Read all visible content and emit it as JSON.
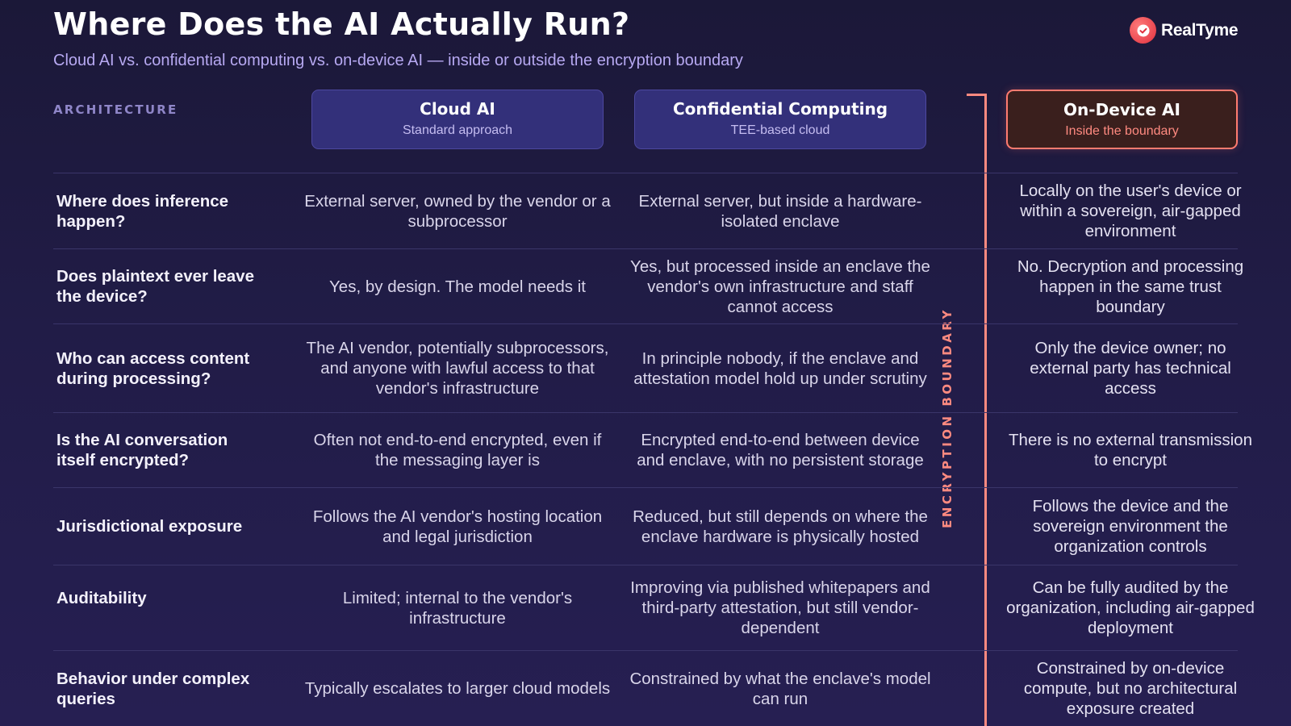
{
  "header": {
    "title": "Where Does the AI Actually Run?",
    "subtitle": "Cloud AI vs. confidential computing vs. on-device AI — inside or outside the encryption boundary"
  },
  "brand": {
    "name": "RealTyme",
    "logo_icon": "checkmark-bubble-icon",
    "color": "#e0303e"
  },
  "colors": {
    "accent_boundary": "#ff8a80",
    "header_box": "#33307a",
    "background": "#1d1a3f"
  },
  "table": {
    "label": "ARCHITECTURE",
    "columns": [
      {
        "title": "Cloud AI",
        "subtitle": "Standard approach"
      },
      {
        "title": "Confidential Computing",
        "subtitle": "TEE-based cloud"
      },
      {
        "title": "On-Device AI",
        "subtitle": "Inside the boundary"
      }
    ],
    "boundary_label": "ENCRYPTION BOUNDARY",
    "rows": [
      {
        "question": "Where does inference happen?",
        "cloud": "External server, owned by the vendor or a subprocessor",
        "confidential": "External server, but inside a hardware-isolated enclave",
        "device": "Locally on the user's device or within a sovereign, air-gapped environment"
      },
      {
        "question": "Does plaintext ever leave the device?",
        "cloud": "Yes, by design. The model needs it",
        "confidential": "Yes, but processed inside an enclave the vendor's own infrastructure and staff cannot access",
        "device": "No. Decryption and processing happen in the same trust boundary"
      },
      {
        "question": "Who can access content during processing?",
        "cloud": "The AI vendor, potentially subprocessors, and anyone with lawful access to that vendor's infrastructure",
        "confidential": "In principle nobody, if the enclave and attestation model hold up under scrutiny",
        "device": "Only the device owner; no external party has technical access"
      },
      {
        "question": "Is the AI conversation itself encrypted?",
        "cloud": "Often not end-to-end encrypted, even if the messaging layer is",
        "confidential": "Encrypted end-to-end between device and enclave, with no persistent storage",
        "device": "There is no external transmission to encrypt"
      },
      {
        "question": "Jurisdictional exposure",
        "cloud": "Follows the AI vendor's hosting location and legal jurisdiction",
        "confidential": "Reduced, but still depends on where the enclave hardware is physically hosted",
        "device": "Follows the device and the sovereign environment the organization controls"
      },
      {
        "question": "Auditability",
        "cloud": "Limited; internal to the vendor's infrastructure",
        "confidential": "Improving via published whitepapers and third-party attestation, but still vendor-dependent",
        "device": "Can be fully audited by the organization, including air-gapped deployment"
      },
      {
        "question": "Behavior under complex queries",
        "cloud": "Typically escalates to larger cloud models",
        "confidential": "Constrained by what the enclave's model can run",
        "device": "Constrained by on-device compute, but no architectural exposure created"
      }
    ]
  }
}
